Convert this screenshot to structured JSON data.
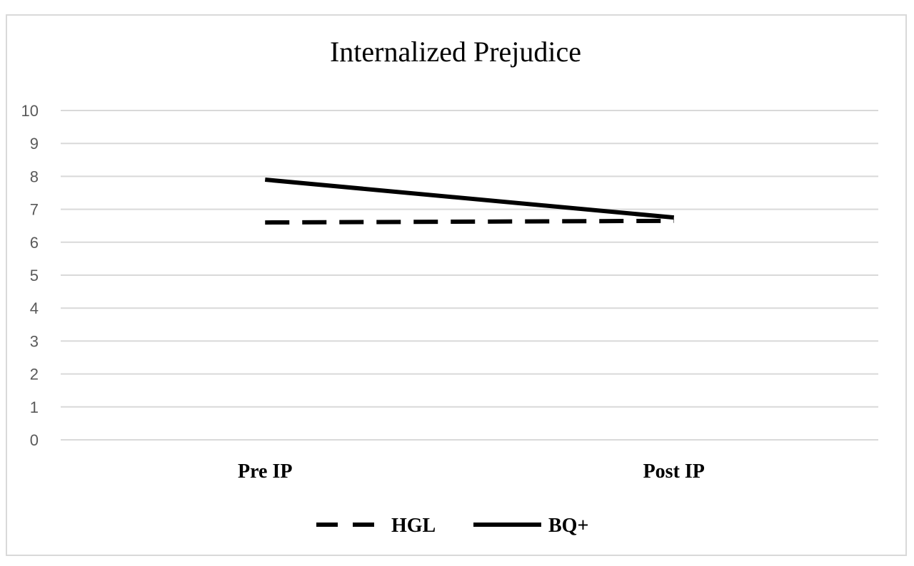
{
  "chart_data": {
    "type": "line",
    "title": "Internalized Prejudice",
    "categories": [
      "Pre IP",
      "Post IP"
    ],
    "series": [
      {
        "name": "HGL",
        "values": [
          6.6,
          6.65
        ],
        "style": "dashed",
        "color": "#000000"
      },
      {
        "name": "BQ+",
        "values": [
          7.9,
          6.75
        ],
        "style": "solid",
        "color": "#000000"
      }
    ],
    "xlabel": "",
    "ylabel": "",
    "ylim": [
      0,
      10
    ],
    "yticks": [
      "0",
      "1",
      "2",
      "3",
      "4",
      "5",
      "6",
      "7",
      "8",
      "9",
      "10"
    ],
    "grid": true,
    "legend": "bottom"
  }
}
